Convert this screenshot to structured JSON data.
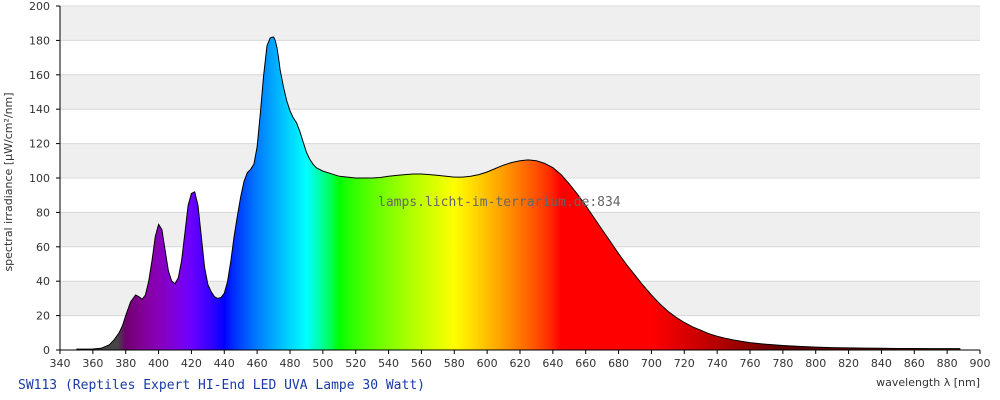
{
  "chart_data": {
    "type": "area",
    "title": "",
    "caption": "SW113 (Reptiles Expert HI-End LED UVA Lampe 30 Watt)",
    "watermark": "lamps.licht-im-terrarium.de:834",
    "xlabel": "wavelength λ [nm]",
    "ylabel": "spectral irradiance [µW/cm²/nm]",
    "xlim": [
      340,
      900
    ],
    "ylim": [
      0,
      200
    ],
    "x_ticks": [
      340,
      360,
      380,
      400,
      420,
      440,
      460,
      480,
      500,
      520,
      540,
      560,
      580,
      600,
      620,
      640,
      660,
      680,
      700,
      720,
      740,
      760,
      780,
      800,
      820,
      840,
      860,
      880,
      900
    ],
    "y_ticks": [
      0,
      20,
      40,
      60,
      80,
      100,
      120,
      140,
      160,
      180,
      200
    ],
    "grid": true,
    "fill": "spectral-colors",
    "series": [
      {
        "x": [
          350,
          360,
          365,
          370,
          373,
          376,
          378,
          380,
          383,
          386,
          388,
          390,
          392,
          394,
          396,
          398,
          400,
          402,
          404,
          406,
          408,
          410,
          412,
          414,
          416,
          418,
          420,
          422,
          424,
          426,
          428,
          430,
          432,
          434,
          436,
          438,
          440,
          442,
          444,
          446,
          448,
          450,
          452,
          454,
          456,
          458,
          460,
          462,
          464,
          466,
          468,
          470,
          471,
          472,
          473,
          474,
          476,
          478,
          480,
          482,
          484,
          486,
          488,
          490,
          492,
          494,
          496,
          498,
          500,
          505,
          510,
          515,
          520,
          525,
          530,
          535,
          540,
          545,
          550,
          555,
          560,
          565,
          570,
          575,
          580,
          585,
          590,
          595,
          600,
          605,
          610,
          615,
          620,
          625,
          630,
          635,
          640,
          645,
          650,
          655,
          660,
          665,
          670,
          675,
          680,
          685,
          690,
          695,
          700,
          705,
          710,
          715,
          720,
          725,
          730,
          735,
          740,
          745,
          750,
          755,
          760,
          770,
          780,
          790,
          800,
          810,
          820,
          830,
          840,
          850,
          860,
          870,
          880,
          888
        ],
        "y": [
          0.5,
          0.6,
          1.0,
          3.0,
          6.0,
          10.0,
          14.0,
          20.0,
          28.0,
          32.0,
          31.0,
          29.5,
          32.0,
          40.0,
          52.0,
          66.0,
          73.0,
          70.0,
          58.0,
          46.0,
          40.0,
          38.5,
          42.0,
          52.0,
          68.0,
          84.0,
          91.0,
          92.0,
          84.0,
          66.0,
          48.0,
          38.0,
          34.0,
          31.0,
          30.0,
          30.5,
          33.0,
          40.0,
          52.0,
          66.0,
          78.0,
          89.0,
          98.0,
          103.0,
          105.0,
          108.0,
          118.0,
          138.0,
          160.0,
          177.0,
          181.5,
          182.0,
          180.0,
          176.0,
          170.0,
          163.0,
          153.0,
          145.0,
          139.0,
          135.0,
          132.0,
          127.0,
          121.0,
          115.0,
          111.0,
          108.0,
          106.0,
          105.0,
          104.0,
          102.5,
          101.0,
          100.5,
          100.0,
          100.0,
          100.0,
          100.3,
          101.0,
          101.5,
          102.0,
          102.3,
          102.3,
          102.0,
          101.5,
          101.0,
          100.5,
          100.5,
          101.0,
          102.0,
          103.5,
          105.5,
          107.5,
          109.0,
          110.0,
          110.5,
          110.0,
          108.5,
          106.0,
          102.0,
          96.5,
          90.5,
          84.0,
          77.0,
          70.0,
          63.0,
          56.0,
          49.5,
          43.5,
          37.5,
          32.0,
          27.0,
          22.5,
          19.0,
          16.0,
          13.5,
          11.5,
          9.5,
          8.0,
          6.8,
          5.8,
          5.0,
          4.3,
          3.3,
          2.6,
          2.1,
          1.7,
          1.4,
          1.2,
          1.1,
          1.0,
          0.9,
          0.9,
          0.8,
          0.8,
          0.8
        ]
      }
    ]
  }
}
